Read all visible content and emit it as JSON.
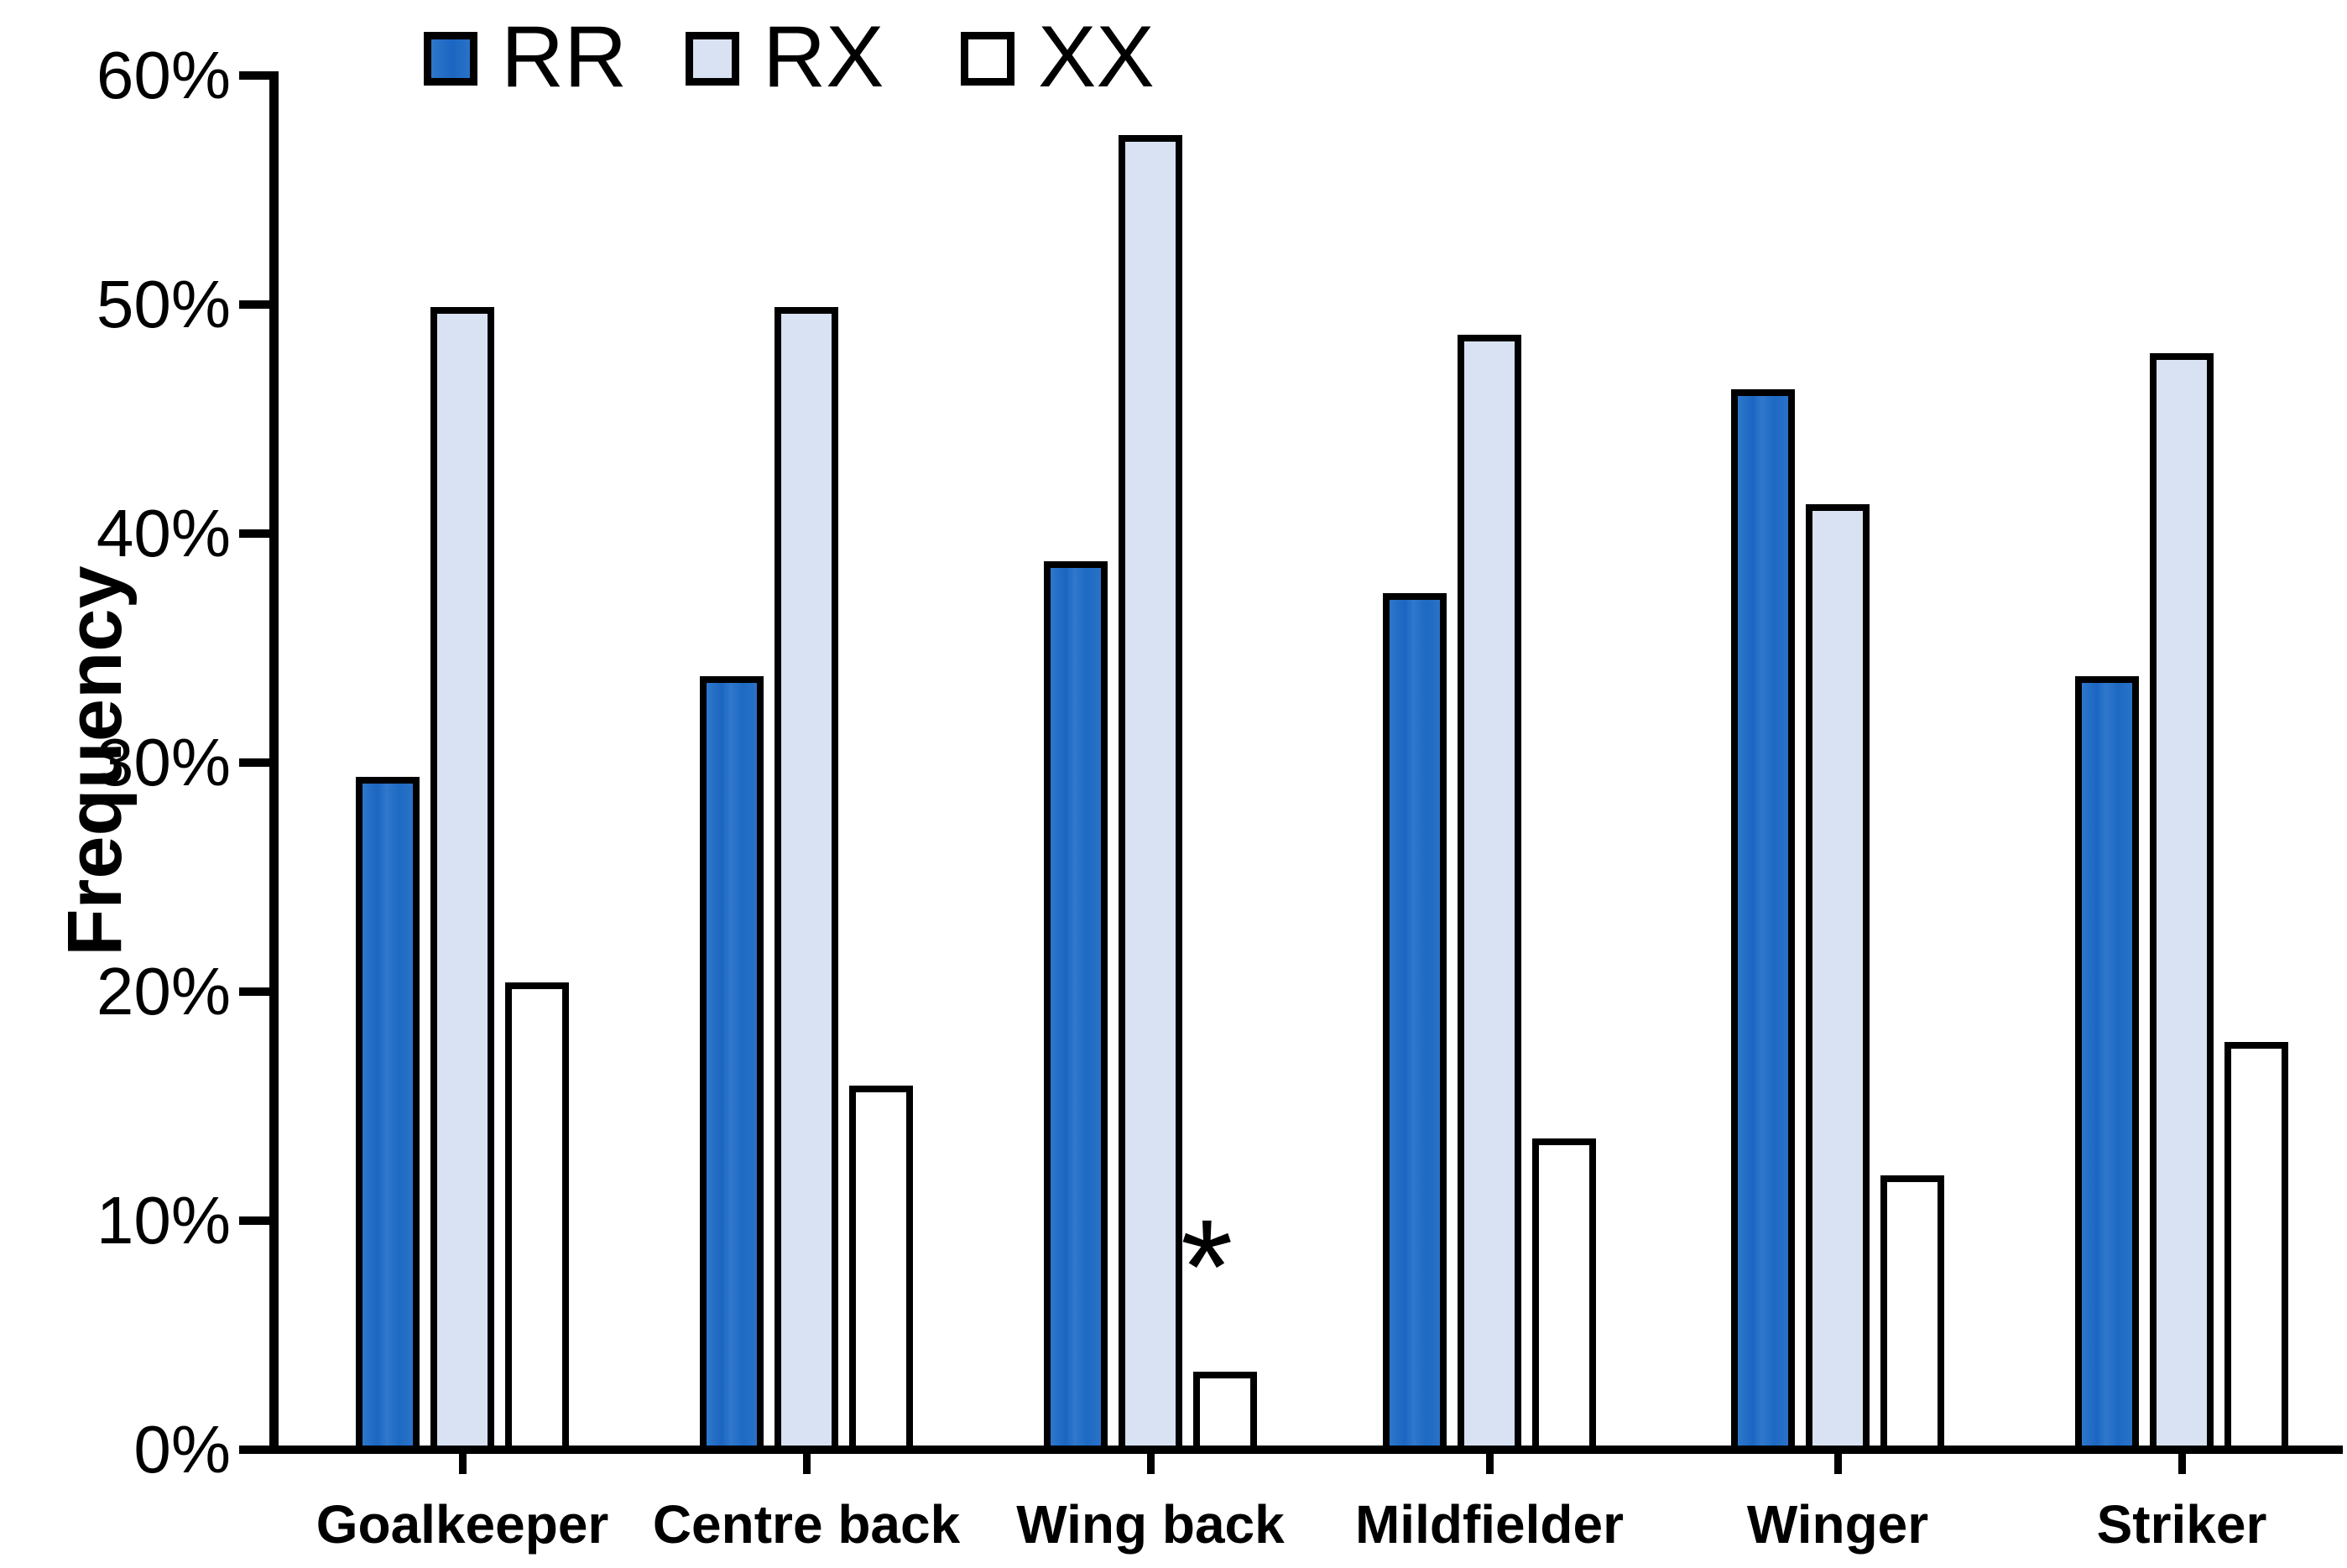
{
  "chart_data": {
    "type": "bar",
    "title": "",
    "ylabel": "Frequency",
    "xlabel": "",
    "categories": [
      "Goalkeeper",
      "Centre back",
      "Wing back",
      "Mildfielder",
      "Winger",
      "Striker"
    ],
    "series": [
      {
        "name": "RR",
        "color": "#2A72C8",
        "values": [
          29.5,
          33.9,
          38.9,
          37.5,
          46.4,
          33.9
        ]
      },
      {
        "name": "RX",
        "color": "#D8E2F2",
        "values": [
          50.0,
          50.0,
          57.5,
          48.8,
          41.4,
          48.0
        ]
      },
      {
        "name": "XX",
        "color": "#FFFFFF",
        "values": [
          20.5,
          16.0,
          3.5,
          13.7,
          12.1,
          17.9
        ]
      }
    ],
    "ylim": [
      0,
      60
    ],
    "ytick_labels": [
      "0%",
      "10%",
      "20%",
      "30%",
      "40%",
      "50%",
      "60%"
    ],
    "ytick_values": [
      0,
      10,
      20,
      30,
      40,
      50,
      60
    ],
    "grid": false,
    "legend_position": "top",
    "bar_border_color": "#000000",
    "axis_color": "#000000",
    "annotations": [
      {
        "text": "*",
        "category": "Wing back",
        "series": "XX"
      }
    ]
  }
}
